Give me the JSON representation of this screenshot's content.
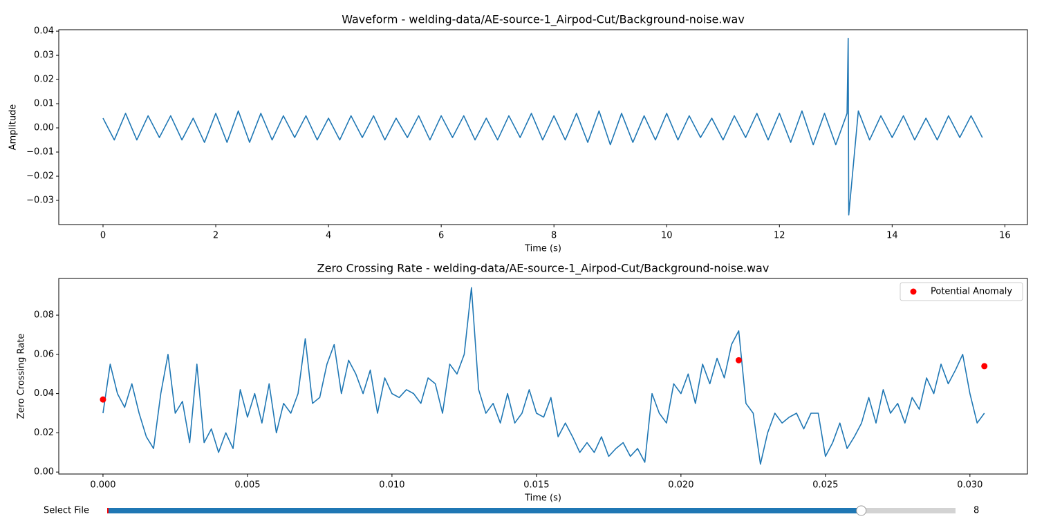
{
  "chart_data": [
    {
      "type": "line",
      "title": "Waveform - welding-data/AE-source-1_Airpod-Cut/Background-noise.wav",
      "x_label": "Time (s)",
      "y_label": "Amplitude",
      "xlim": [
        -0.785,
        16.4
      ],
      "ylim": [
        -0.04,
        0.0406
      ],
      "xticks": [
        0,
        2,
        4,
        6,
        8,
        10,
        12,
        14,
        16
      ],
      "yticks": [
        {
          "value": -0.03,
          "label": "−0.03"
        },
        {
          "value": -0.02,
          "label": "−0.02"
        },
        {
          "value": -0.01,
          "label": "−0.01"
        },
        {
          "value": 0,
          "label": "0.00"
        },
        {
          "value": 0.01,
          "label": "0.01"
        },
        {
          "value": 0.02,
          "label": "0.02"
        },
        {
          "value": 0.03,
          "label": "0.03"
        },
        {
          "value": 0.04,
          "label": "0.04"
        }
      ],
      "x": [
        0,
        0.2,
        0.4,
        0.6,
        0.8,
        1.0,
        1.2,
        1.4,
        1.6,
        1.8,
        2.0,
        2.2,
        2.4,
        2.6,
        2.8,
        3.0,
        3.2,
        3.4,
        3.6,
        3.8,
        4.0,
        4.2,
        4.4,
        4.6,
        4.8,
        5.0,
        5.2,
        5.4,
        5.6,
        5.8,
        6.0,
        6.2,
        6.4,
        6.6,
        6.8,
        7.0,
        7.2,
        7.4,
        7.6,
        7.8,
        8.0,
        8.2,
        8.4,
        8.6,
        8.8,
        9.0,
        9.2,
        9.4,
        9.6,
        9.8,
        10.0,
        10.2,
        10.4,
        10.6,
        10.8,
        11.0,
        11.2,
        11.4,
        11.6,
        11.8,
        12.0,
        12.2,
        12.4,
        12.6,
        12.8,
        13.0,
        13.2,
        13.22,
        13.23,
        13.4,
        13.6,
        13.8,
        14.0,
        14.2,
        14.4,
        14.6,
        14.8,
        15.0,
        15.2,
        15.4,
        15.6
      ],
      "series": [
        {
          "color": "#1f77b4",
          "style": "line",
          "values": [
            0.004,
            -0.005,
            0.006,
            -0.005,
            0.005,
            -0.004,
            0.005,
            -0.005,
            0.004,
            -0.006,
            0.006,
            -0.006,
            0.007,
            -0.006,
            0.006,
            -0.005,
            0.005,
            -0.004,
            0.005,
            -0.005,
            0.004,
            -0.005,
            0.005,
            -0.004,
            0.005,
            -0.005,
            0.004,
            -0.004,
            0.005,
            -0.005,
            0.005,
            -0.004,
            0.005,
            -0.005,
            0.004,
            -0.005,
            0.005,
            -0.004,
            0.006,
            -0.005,
            0.005,
            -0.005,
            0.006,
            -0.006,
            0.007,
            -0.007,
            0.006,
            -0.006,
            0.005,
            -0.005,
            0.006,
            -0.005,
            0.005,
            -0.004,
            0.004,
            -0.005,
            0.005,
            -0.004,
            0.006,
            -0.005,
            0.006,
            -0.006,
            0.007,
            -0.007,
            0.006,
            -0.007,
            0.006,
            0.037,
            -0.036,
            0.007,
            -0.005,
            0.005,
            -0.004,
            0.005,
            -0.005,
            0.004,
            -0.005,
            0.005,
            -0.004,
            0.005,
            -0.004
          ]
        }
      ]
    },
    {
      "type": "line",
      "title": "Zero Crossing Rate - welding-data/AE-source-1_Airpod-Cut/Background-noise.wav",
      "x_label": "Time (s)",
      "y_label": "Zero Crossing Rate",
      "xlim": [
        -0.00153,
        0.03199
      ],
      "ylim": [
        -0.001,
        0.0987
      ],
      "xticks": [
        {
          "value": 0,
          "label": "0.000"
        },
        {
          "value": 0.005,
          "label": "0.005"
        },
        {
          "value": 0.01,
          "label": "0.010"
        },
        {
          "value": 0.015,
          "label": "0.015"
        },
        {
          "value": 0.02,
          "label": "0.020"
        },
        {
          "value": 0.025,
          "label": "0.025"
        },
        {
          "value": 0.03,
          "label": "0.030"
        }
      ],
      "yticks": [
        {
          "value": 0,
          "label": "0.00"
        },
        {
          "value": 0.02,
          "label": "0.02"
        },
        {
          "value": 0.04,
          "label": "0.04"
        },
        {
          "value": 0.06,
          "label": "0.06"
        },
        {
          "value": 0.08,
          "label": "0.08"
        }
      ],
      "legend": "upper right",
      "series": [
        {
          "color": "#1f77b4",
          "style": "line",
          "x": [
            0,
            0.00025,
            0.0005,
            0.00075,
            0.001,
            0.00125,
            0.0015,
            0.00175,
            0.002,
            0.00225,
            0.0025,
            0.00275,
            0.003,
            0.00325,
            0.0035,
            0.00375,
            0.004,
            0.00425,
            0.0045,
            0.00475,
            0.005,
            0.00525,
            0.0055,
            0.00575,
            0.006,
            0.00625,
            0.0065,
            0.00675,
            0.007,
            0.00725,
            0.0075,
            0.00775,
            0.008,
            0.00825,
            0.0085,
            0.00875,
            0.009,
            0.00925,
            0.0095,
            0.00975,
            0.01,
            0.01025,
            0.0105,
            0.01075,
            0.011,
            0.01125,
            0.0115,
            0.01175,
            0.012,
            0.01225,
            0.0125,
            0.01275,
            0.013,
            0.01325,
            0.0135,
            0.01375,
            0.014,
            0.01425,
            0.0145,
            0.01475,
            0.015,
            0.01525,
            0.0155,
            0.01575,
            0.016,
            0.01625,
            0.0165,
            0.01675,
            0.017,
            0.01725,
            0.0175,
            0.01775,
            0.018,
            0.01825,
            0.0185,
            0.01875,
            0.019,
            0.01925,
            0.0195,
            0.01975,
            0.02,
            0.02025,
            0.0205,
            0.02075,
            0.021,
            0.02125,
            0.0215,
            0.02175,
            0.022,
            0.02225,
            0.0225,
            0.02275,
            0.023,
            0.02325,
            0.0235,
            0.02375,
            0.024,
            0.02425,
            0.0245,
            0.02475,
            0.025,
            0.02525,
            0.0255,
            0.02575,
            0.026,
            0.02625,
            0.0265,
            0.02675,
            0.027,
            0.02725,
            0.0275,
            0.02775,
            0.028,
            0.02825,
            0.0285,
            0.02875,
            0.029,
            0.02925,
            0.0295,
            0.02975,
            0.03,
            0.03025,
            0.0305
          ],
          "values": [
            0.03,
            0.055,
            0.04,
            0.033,
            0.045,
            0.03,
            0.018,
            0.012,
            0.04,
            0.06,
            0.03,
            0.036,
            0.015,
            0.055,
            0.015,
            0.022,
            0.01,
            0.02,
            0.012,
            0.042,
            0.028,
            0.04,
            0.025,
            0.045,
            0.02,
            0.035,
            0.03,
            0.04,
            0.068,
            0.035,
            0.038,
            0.055,
            0.065,
            0.04,
            0.057,
            0.05,
            0.04,
            0.052,
            0.03,
            0.048,
            0.04,
            0.038,
            0.042,
            0.04,
            0.035,
            0.048,
            0.045,
            0.03,
            0.055,
            0.05,
            0.06,
            0.094,
            0.042,
            0.03,
            0.035,
            0.025,
            0.04,
            0.025,
            0.03,
            0.042,
            0.03,
            0.028,
            0.038,
            0.018,
            0.025,
            0.018,
            0.01,
            0.015,
            0.01,
            0.018,
            0.008,
            0.012,
            0.015,
            0.008,
            0.012,
            0.005,
            0.04,
            0.03,
            0.025,
            0.045,
            0.04,
            0.05,
            0.035,
            0.055,
            0.045,
            0.058,
            0.048,
            0.065,
            0.072,
            0.035,
            0.03,
            0.004,
            0.02,
            0.03,
            0.025,
            0.028,
            0.03,
            0.022,
            0.03,
            0.03,
            0.008,
            0.015,
            0.025,
            0.012,
            0.018,
            0.025,
            0.038,
            0.025,
            0.042,
            0.03,
            0.035,
            0.025,
            0.038,
            0.032,
            0.048,
            0.04,
            0.055,
            0.045,
            0.052,
            0.06,
            0.04,
            0.025,
            0.03
          ]
        },
        {
          "name": "Potential Anomaly",
          "color": "#ff0000",
          "style": "points",
          "x": [
            0,
            0.022,
            0.0305
          ],
          "values": [
            0.037,
            0.057,
            0.054
          ]
        }
      ]
    }
  ],
  "slider": {
    "label": "Select File",
    "value": 8,
    "range": [
      0,
      9
    ],
    "color": "#1f77b4"
  }
}
